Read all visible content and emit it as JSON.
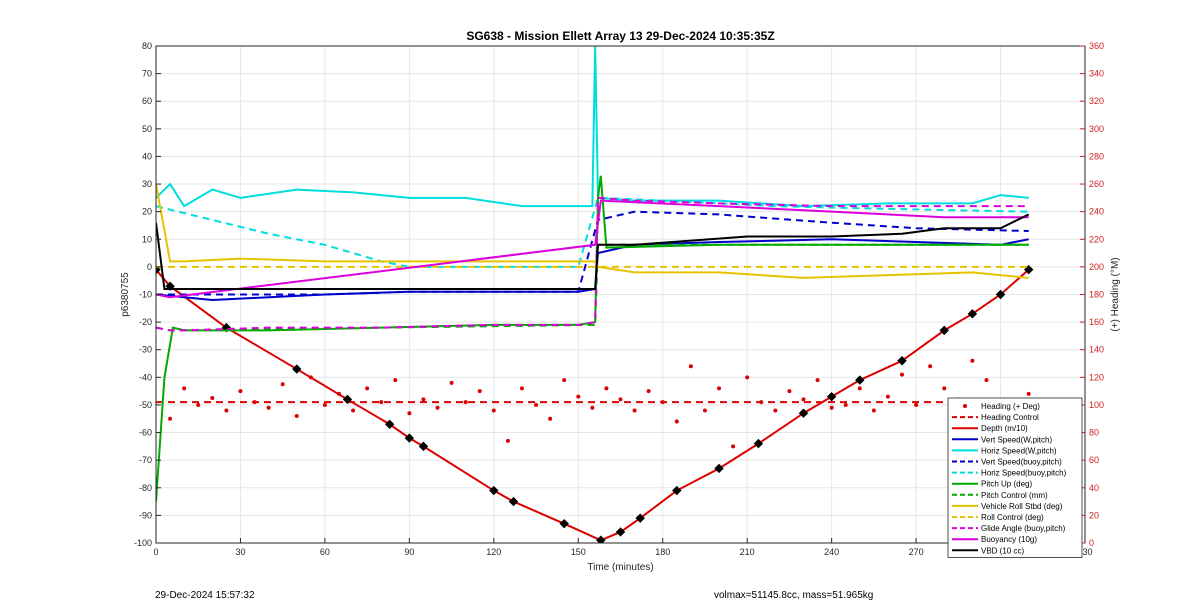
{
  "chart_data": {
    "type": "line",
    "title": "SG638 - Mission Ellett Array 13 29-Dec-2024 10:35:35Z",
    "xlabel": "Time (minutes)",
    "ylabel": "p6380755",
    "y2label": "(+) Heading (°M)",
    "xlim": [
      0,
      330
    ],
    "ylim": [
      -100,
      80
    ],
    "y2lim": [
      0,
      360
    ],
    "xticks": [
      0,
      30,
      60,
      90,
      120,
      150,
      180,
      210,
      240,
      270,
      300,
      330
    ],
    "yticks": [
      -100,
      -90,
      -80,
      -70,
      -60,
      -50,
      -40,
      -30,
      -20,
      -10,
      0,
      10,
      20,
      30,
      40,
      50,
      60,
      70,
      80
    ],
    "y2ticks": [
      0,
      20,
      40,
      60,
      80,
      100,
      120,
      140,
      160,
      180,
      200,
      220,
      240,
      260,
      280,
      300,
      320,
      340,
      360
    ],
    "grid": true,
    "legend_position": "bottom-right",
    "series": [
      {
        "name": "Heading (+ Deg)",
        "axis": "right",
        "style": "dots",
        "color": "#dd0000",
        "x": [
          5,
          10,
          15,
          20,
          25,
          30,
          35,
          40,
          45,
          50,
          55,
          60,
          65,
          70,
          75,
          80,
          85,
          90,
          95,
          100,
          105,
          110,
          115,
          120,
          125,
          130,
          135,
          140,
          145,
          150,
          155,
          160,
          165,
          170,
          175,
          180,
          185,
          190,
          195,
          200,
          205,
          210,
          215,
          220,
          225,
          230,
          235,
          240,
          245,
          250,
          255,
          260,
          265,
          270,
          275,
          280,
          285,
          290,
          295,
          300,
          305,
          310
        ],
        "y": [
          90,
          112,
          100,
          105,
          96,
          110,
          102,
          98,
          115,
          92,
          120,
          100,
          108,
          96,
          112,
          102,
          118,
          94,
          104,
          98,
          116,
          102,
          110,
          96,
          74,
          112,
          100,
          90,
          118,
          106,
          98,
          112,
          104,
          96,
          110,
          102,
          88,
          128,
          96,
          112,
          70,
          120,
          102,
          96,
          110,
          104,
          118,
          98,
          100,
          112,
          96,
          106,
          122,
          100,
          128,
          112,
          104,
          132,
          118,
          100,
          96,
          108
        ]
      },
      {
        "name": "Heading Control",
        "axis": "right",
        "style": "dashed",
        "color": "#dd0000",
        "x": [
          0,
          310
        ],
        "y": [
          102,
          102
        ]
      },
      {
        "name": "Depth (m/10)",
        "style": "solid",
        "color": "#dd0000",
        "markers": true,
        "x": [
          0,
          5,
          25,
          50,
          68,
          83,
          90,
          95,
          120,
          127,
          145,
          158,
          165,
          172,
          185,
          200,
          214,
          230,
          240,
          250,
          265,
          280,
          290,
          300,
          310
        ],
        "y": [
          -1,
          -7,
          -22,
          -37,
          -48,
          -57,
          -62,
          -65,
          -81,
          -85,
          -93,
          -99,
          -96,
          -91,
          -81,
          -73,
          -64,
          -53,
          -47,
          -41,
          -34,
          -23,
          -17,
          -10,
          -1
        ]
      },
      {
        "name": "Vert Speed(W,pitch)",
        "style": "solid",
        "color": "#0000cc",
        "x": [
          0,
          10,
          20,
          40,
          60,
          90,
          120,
          150,
          156,
          157,
          170,
          200,
          240,
          270,
          300,
          310
        ],
        "y": [
          -10,
          -11,
          -12,
          -11,
          -10,
          -9,
          -9,
          -9,
          -8,
          5,
          8,
          9,
          10,
          9,
          8,
          10
        ]
      },
      {
        "name": "Horiz Speed(W,pitch)",
        "style": "solid",
        "color": "#00dddd",
        "x": [
          0,
          5,
          10,
          20,
          30,
          50,
          70,
          90,
          110,
          130,
          150,
          155,
          156,
          157,
          170,
          200,
          230,
          260,
          290,
          300,
          310
        ],
        "y": [
          25,
          30,
          22,
          28,
          25,
          28,
          27,
          25,
          25,
          22,
          22,
          22,
          80,
          25,
          24,
          24,
          22,
          23,
          23,
          26,
          25
        ]
      },
      {
        "name": "Vert Speed(buoy,pitch)",
        "style": "dashed",
        "color": "#0000cc",
        "x": [
          0,
          30,
          60,
          90,
          120,
          150,
          157,
          170,
          200,
          240,
          270,
          310
        ],
        "y": [
          -10,
          -10,
          -10,
          -9,
          -9,
          -9,
          17,
          20,
          19,
          16,
          14,
          13
        ]
      },
      {
        "name": "Horiz Speed(buoy,pitch)",
        "style": "dashed",
        "color": "#00dddd",
        "x": [
          0,
          20,
          40,
          60,
          80,
          90,
          150,
          157,
          180,
          220,
          260,
          310
        ],
        "y": [
          22,
          17,
          12,
          8,
          2,
          0,
          0,
          25,
          24,
          22,
          21,
          20
        ]
      },
      {
        "name": "Pitch Up (deg)",
        "style": "solid",
        "color": "#00aa00",
        "x": [
          0,
          3,
          6,
          10,
          40,
          80,
          120,
          150,
          156,
          157,
          158,
          160,
          200,
          240,
          280,
          310
        ],
        "y": [
          -85,
          -40,
          -22,
          -23,
          -23,
          -22,
          -21,
          -21,
          -20,
          25,
          33,
          7,
          8,
          8,
          8,
          8
        ]
      },
      {
        "name": "Pitch Control (mm)",
        "style": "dashed",
        "color": "#00aa00",
        "x": [
          0,
          5,
          156,
          157,
          200,
          240,
          280,
          310
        ],
        "y": [
          -22,
          -23,
          -21,
          8,
          8,
          8,
          8,
          8
        ]
      },
      {
        "name": "Vehicle Roll Stbd (deg)",
        "style": "solid",
        "color": "#e6c200",
        "x": [
          0,
          5,
          10,
          30,
          60,
          90,
          120,
          150,
          156,
          157,
          170,
          200,
          230,
          260,
          290,
          310
        ],
        "y": [
          30,
          2,
          2,
          3,
          2,
          2,
          2,
          2,
          2,
          0,
          -2,
          -2,
          -4,
          -3,
          -2,
          -4
        ]
      },
      {
        "name": "Roll Control (deg)",
        "style": "dashed",
        "color": "#e6c200",
        "x": [
          0,
          10,
          60,
          120,
          156,
          157,
          200,
          250,
          310
        ],
        "y": [
          0,
          0,
          0,
          0,
          0,
          0,
          0,
          0,
          0
        ]
      },
      {
        "name": "Glide Angle (buoy,pitch)",
        "style": "dashed",
        "color": "#dd00dd",
        "x": [
          0,
          5,
          10,
          40,
          80,
          120,
          150,
          156,
          157,
          170,
          200,
          240,
          280,
          310
        ],
        "y": [
          -22,
          -23,
          -23,
          -22,
          -22,
          -21,
          -21,
          -20,
          25,
          24,
          23,
          22,
          22,
          22
        ]
      },
      {
        "name": "Buoyancy (10g)",
        "style": "solid",
        "color": "#dd00dd",
        "x": [
          0,
          5,
          156,
          158,
          200,
          240,
          280,
          310
        ],
        "y": [
          -10,
          -11,
          8,
          24,
          22,
          20,
          18,
          18
        ]
      },
      {
        "name": "VBD (10 cc)",
        "style": "solid",
        "color": "#000000",
        "x": [
          0,
          3,
          5,
          60,
          120,
          156,
          157,
          170,
          210,
          240,
          265,
          280,
          300,
          310
        ],
        "y": [
          16,
          -8,
          -8,
          -8,
          -8,
          -8,
          8,
          8,
          11,
          11,
          12,
          14,
          14,
          19
        ]
      }
    ]
  },
  "footer": {
    "timestamp": "29-Dec-2024 15:57:32",
    "summary": "volmax=51145.8cc, mass=51.965kg"
  }
}
